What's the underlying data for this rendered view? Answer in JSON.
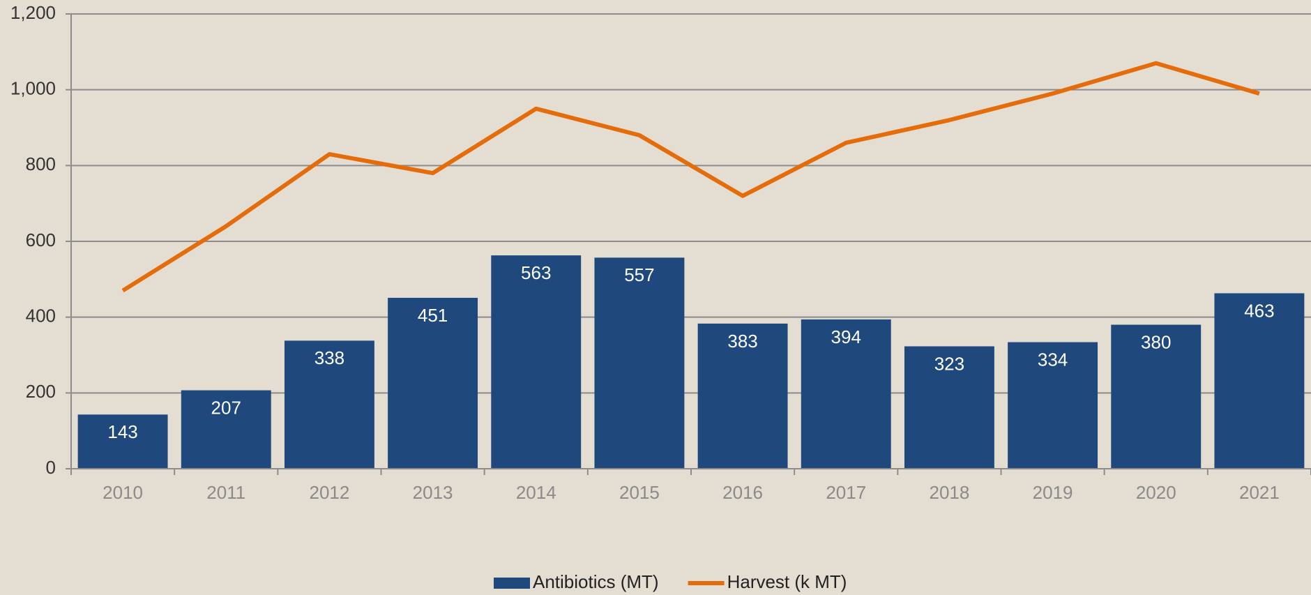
{
  "chart_data": {
    "type": "bar_line",
    "categories": [
      "2010",
      "2011",
      "2012",
      "2013",
      "2014",
      "2015",
      "2016",
      "2017",
      "2018",
      "2019",
      "2020",
      "2021"
    ],
    "series": [
      {
        "name": "Antibiotics (MT)",
        "type": "bar",
        "color": "#1f497d",
        "values": [
          143,
          207,
          338,
          451,
          563,
          557,
          383,
          394,
          323,
          334,
          380,
          463
        ]
      },
      {
        "name": "Harvest (k MT)",
        "type": "line",
        "color": "#e46c0a",
        "values": [
          470,
          640,
          830,
          780,
          950,
          880,
          720,
          860,
          920,
          990,
          1070,
          990
        ]
      }
    ],
    "ylim": [
      0,
      1200
    ],
    "yticks": [
      0,
      200,
      400,
      600,
      800,
      {
        "value": 1000,
        "label": "1,000"
      },
      {
        "value": 1200,
        "label": "1,200"
      }
    ],
    "grid": true,
    "legend": "bottom"
  }
}
